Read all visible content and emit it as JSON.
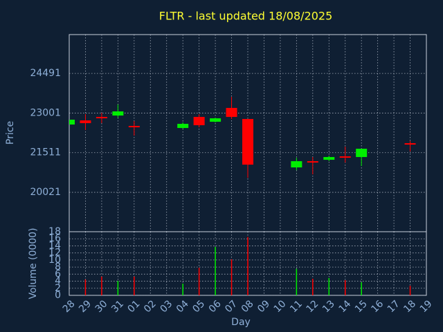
{
  "chart_data": {
    "type": "candlestick",
    "title": "FLTR - last updated 18/08/2025",
    "xlabel": "Day",
    "ylabel": "Price",
    "y2label": "Volume (0000)",
    "categories": [
      "28",
      "29",
      "30",
      "31",
      "01",
      "02",
      "03",
      "04",
      "05",
      "06",
      "07",
      "08",
      "09",
      "10",
      "11",
      "12",
      "13",
      "14",
      "15",
      "16",
      "17",
      "18",
      "19"
    ],
    "open": [
      22569,
      22725,
      22855,
      22907,
      22517,
      null,
      null,
      22439,
      22855,
      22673,
      23193,
      22777,
      null,
      null,
      20957,
      21191,
      21243,
      21373,
      21347,
      null,
      null,
      21867,
      null
    ],
    "high": [
      22751,
      22959,
      23011,
      23323,
      22699,
      null,
      null,
      22647,
      22959,
      22829,
      23609,
      22777,
      null,
      null,
      21321,
      21347,
      21399,
      21737,
      21659,
      null,
      null,
      21945,
      null
    ],
    "low": [
      22569,
      22361,
      22621,
      22829,
      22153,
      null,
      null,
      22413,
      22465,
      22647,
      22777,
      20567,
      null,
      null,
      20853,
      20697,
      21191,
      21139,
      21009,
      null,
      null,
      21555,
      null
    ],
    "close": [
      22751,
      22621,
      22803,
      23063,
      22465,
      null,
      null,
      22595,
      22543,
      22803,
      22855,
      21061,
      null,
      null,
      21191,
      21139,
      21347,
      21321,
      21659,
      null,
      null,
      21815,
      null
    ],
    "volume": [
      null,
      4.5,
      5.3,
      4.1,
      5.3,
      null,
      null,
      3.3,
      7.8,
      13.7,
      10.2,
      16.5,
      null,
      null,
      7.5,
      4.7,
      4.9,
      4.3,
      3.7,
      null,
      null,
      2.7,
      null
    ],
    "up_color": "#00ee00",
    "down_color": "#ff0000",
    "ylim": [
      18540,
      25950
    ],
    "yticks": [
      20021,
      21511,
      23001,
      24491
    ],
    "y2lim": [
      0,
      18
    ],
    "y2ticks": [
      0,
      2,
      4,
      6,
      8,
      10,
      12,
      14,
      16,
      18
    ],
    "grid": true
  }
}
